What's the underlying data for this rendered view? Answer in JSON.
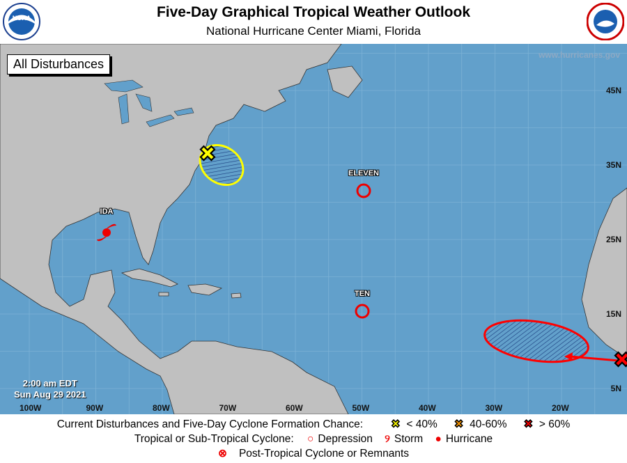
{
  "header": {
    "title": "Five-Day Graphical Tropical Weather Outlook",
    "subtitle": "National Hurricane Center  Miami, Florida",
    "left_logo": "NOAA",
    "right_logo": "National Weather Service"
  },
  "map": {
    "view_label": "All Disturbances",
    "website": "www.hurricanes.gov",
    "time": "2:00 am EDT",
    "date": "Sun Aug 29 2021",
    "lon_labels": [
      "100W",
      "90W",
      "80W",
      "70W",
      "60W",
      "50W",
      "40W",
      "30W",
      "20W"
    ],
    "lat_labels": [
      "45N",
      "35N",
      "25N",
      "15N",
      "5N"
    ],
    "colors": {
      "ocean": "#62a0cb",
      "land": "#c0c0c0",
      "low": "#ffff00",
      "medium": "#ff9900",
      "high": "#ff0000"
    },
    "systems": [
      {
        "name": "IDA",
        "type": "hurricane",
        "lat": 29,
        "lon": -90
      },
      {
        "name": "ELEVEN",
        "type": "depression",
        "lat": 33,
        "lon": -50
      },
      {
        "name": "TEN",
        "type": "depression",
        "lat": 17,
        "lon": -50
      }
    ],
    "disturbances": [
      {
        "chance": "< 40%",
        "color": "yellow",
        "lat": 37,
        "lon": -74
      },
      {
        "chance": "> 60%",
        "color": "red",
        "lat": 8,
        "lon": -15
      }
    ]
  },
  "legend": {
    "row1_label": "Current Disturbances and Five-Day Cyclone Formation Chance:",
    "low": "< 40%",
    "medium": "40-60%",
    "high": "> 60%",
    "row2_label": "Tropical or Sub-Tropical Cyclone:",
    "depression": "Depression",
    "storm": "Storm",
    "hurricane": "Hurricane",
    "post": "Post-Tropical Cyclone or Remnants"
  }
}
